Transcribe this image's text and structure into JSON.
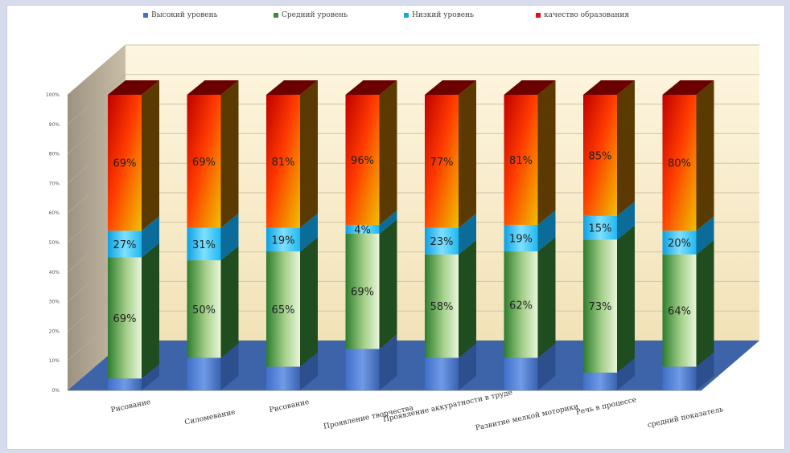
{
  "legend": [
    {
      "label": "Высокий уровень",
      "color": "#4472c4"
    },
    {
      "label": "Средний уровень",
      "color": "#3c8a3c"
    },
    {
      "label": "Низкий уровень",
      "color": "#14a8e0"
    },
    {
      "label": "качество образования",
      "color": "#e01010"
    }
  ],
  "chart_data": {
    "type": "bar",
    "stacked": true,
    "categories": [
      "Рисование",
      "Силомевание",
      "Рисование",
      "Проявление творчества",
      "Проявление аккуратности в труде",
      "Развитие мелкой моторики",
      "Речь в процессе",
      "средний показатель"
    ],
    "yticks": [
      "0%",
      "10%",
      "20%",
      "30%",
      "40%",
      "50%",
      "60%",
      "70%",
      "80%",
      "90%",
      "100%"
    ],
    "ylim": [
      0,
      100
    ],
    "series": [
      {
        "name": "Высокий уровень",
        "values": [
          4,
          11,
          8,
          14,
          11,
          11,
          6,
          8
        ],
        "labels": [
          "",
          "",
          "",
          "",
          "",
          "",
          "",
          ""
        ]
      },
      {
        "name": "Средний уровень",
        "values": [
          41,
          33,
          39,
          39,
          35,
          36,
          45,
          38
        ],
        "labels": [
          "69%",
          "50%",
          "65%",
          "69%",
          "58%",
          "62%",
          "73%",
          "64%"
        ]
      },
      {
        "name": "Низкий уровень",
        "values": [
          9,
          11,
          8,
          3,
          9,
          9,
          8,
          8
        ],
        "labels": [
          "27%",
          "31%",
          "19%",
          "4%",
          "23%",
          "19%",
          "15%",
          "20%"
        ]
      },
      {
        "name": "качество образования",
        "values": [
          46,
          45,
          45,
          44,
          45,
          44,
          41,
          46
        ],
        "labels": [
          "69%",
          "69%",
          "81%",
          "96%",
          "77%",
          "81%",
          "85%",
          "80%"
        ]
      }
    ]
  }
}
